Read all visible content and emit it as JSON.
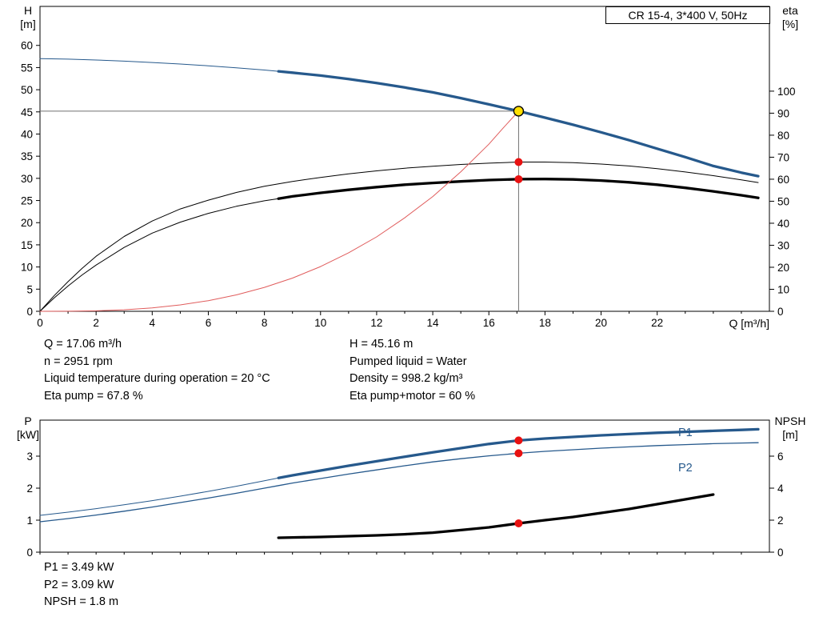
{
  "window": {
    "background": "#ffffff"
  },
  "colors": {
    "blue": "#26598c",
    "black": "#000000",
    "red_curve": "#e05c5c",
    "red_dot": "#e81111",
    "yellow": "#ffdf00",
    "guide": "#707070"
  },
  "annotations": {
    "mid_left": [
      "Q = 17.06 m³/h",
      "n = 2951 rpm",
      "Liquid temperature during operation = 20 °C",
      "Eta pump = 67.8 %"
    ],
    "mid_right": [
      "H = 45.16 m",
      "Pumped liquid = Water",
      "Density = 998.2 kg/m³",
      "Eta pump+motor = 60 %"
    ],
    "bottom": [
      "P1 = 3.49 kW",
      "P2 = 3.09 kW",
      "NPSH = 1.8 m"
    ]
  },
  "chart_data": [
    {
      "name": "head-eta-chart",
      "type": "line",
      "title": "CR 15-4, 3*400 V, 50Hz",
      "x_axis": {
        "label": "Q [m³/h]",
        "range": [
          0,
          26
        ],
        "tick_labels": [
          0,
          2,
          4,
          6,
          8,
          10,
          12,
          14,
          16,
          18,
          20,
          22
        ]
      },
      "y_left": {
        "symbol": "H",
        "unit": "[m]",
        "range": [
          0,
          68.8
        ],
        "ticks": [
          0,
          5,
          10,
          15,
          20,
          25,
          30,
          35,
          40,
          45,
          50,
          55,
          60
        ]
      },
      "y_right": {
        "symbol": "eta",
        "unit": "[%]",
        "range": [
          0,
          138.5
        ],
        "ticks": [
          0,
          10,
          20,
          30,
          40,
          50,
          60,
          70,
          80,
          90,
          100
        ]
      },
      "series": [
        {
          "name": "eta-pump",
          "axis": "right",
          "color": "black",
          "width": 1,
          "points": [
            [
              0,
              0
            ],
            [
              0.5,
              7
            ],
            [
              1,
              13.5
            ],
            [
              1.5,
              19.5
            ],
            [
              2,
              25
            ],
            [
              3,
              34
            ],
            [
              4,
              41
            ],
            [
              5,
              46.5
            ],
            [
              6,
              50.5
            ],
            [
              7,
              54
            ],
            [
              8,
              56.8
            ],
            [
              9,
              59
            ],
            [
              10,
              60.8
            ],
            [
              11,
              62.4
            ],
            [
              12,
              63.8
            ],
            [
              13,
              65
            ],
            [
              14,
              65.9
            ],
            [
              15,
              66.7
            ],
            [
              16,
              67.3
            ],
            [
              17.06,
              67.8
            ],
            [
              18,
              67.8
            ],
            [
              19,
              67.5
            ],
            [
              20,
              66.9
            ],
            [
              21,
              66
            ],
            [
              22,
              64.8
            ],
            [
              23,
              63.3
            ],
            [
              24,
              61.6
            ],
            [
              25,
              59.7
            ],
            [
              25.6,
              58.5
            ]
          ]
        },
        {
          "name": "eta-pump-motor",
          "axis": "right",
          "color": "black",
          "emphasis_from": 8.5,
          "points": [
            [
              0,
              0
            ],
            [
              0.5,
              6
            ],
            [
              1,
              11.5
            ],
            [
              1.5,
              16.5
            ],
            [
              2,
              21
            ],
            [
              3,
              29
            ],
            [
              4,
              35.5
            ],
            [
              5,
              40.5
            ],
            [
              6,
              44.5
            ],
            [
              7,
              47.7
            ],
            [
              8,
              50.2
            ],
            [
              8.5,
              51.2
            ],
            [
              9,
              52.2
            ],
            [
              10,
              53.8
            ],
            [
              11,
              55.2
            ],
            [
              12,
              56.4
            ],
            [
              13,
              57.5
            ],
            [
              14,
              58.3
            ],
            [
              15,
              59
            ],
            [
              16,
              59.6
            ],
            [
              17.06,
              60
            ],
            [
              18,
              60.1
            ],
            [
              19,
              59.9
            ],
            [
              20,
              59.4
            ],
            [
              21,
              58.6
            ],
            [
              22,
              57.5
            ],
            [
              23,
              56.1
            ],
            [
              24,
              54.5
            ],
            [
              25,
              52.7
            ],
            [
              25.6,
              51.5
            ]
          ]
        },
        {
          "name": "system-curve",
          "axis": "left",
          "color": "red_curve",
          "width": 1,
          "points": [
            [
              0,
              0
            ],
            [
              1,
              0.02
            ],
            [
              2,
              0.11
            ],
            [
              3,
              0.35
            ],
            [
              4,
              0.78
            ],
            [
              5,
              1.45
            ],
            [
              6,
              2.4
            ],
            [
              7,
              3.7
            ],
            [
              8,
              5.4
            ],
            [
              9,
              7.5
            ],
            [
              10,
              10.1
            ],
            [
              11,
              13.2
            ],
            [
              12,
              16.8
            ],
            [
              13,
              21.1
            ],
            [
              14,
              25.9
            ],
            [
              15,
              31.5
            ],
            [
              16,
              37.7
            ],
            [
              16.5,
              41.3
            ],
            [
              17.06,
              45.16
            ]
          ]
        },
        {
          "name": "pump-curve-H",
          "axis": "left",
          "color": "blue",
          "emphasis_from": 8.5,
          "points": [
            [
              0,
              57
            ],
            [
              1,
              56.9
            ],
            [
              2,
              56.7
            ],
            [
              3,
              56.45
            ],
            [
              4,
              56.15
            ],
            [
              5,
              55.8
            ],
            [
              6,
              55.4
            ],
            [
              7,
              54.95
            ],
            [
              8,
              54.45
            ],
            [
              8.5,
              54.15
            ],
            [
              9,
              53.85
            ],
            [
              10,
              53.2
            ],
            [
              11,
              52.4
            ],
            [
              12,
              51.5
            ],
            [
              13,
              50.5
            ],
            [
              14,
              49.4
            ],
            [
              15,
              48.1
            ],
            [
              16,
              46.7
            ],
            [
              17.06,
              45.16
            ],
            [
              18,
              43.7
            ],
            [
              19,
              42.1
            ],
            [
              20,
              40.4
            ],
            [
              21,
              38.6
            ],
            [
              22,
              36.7
            ],
            [
              23,
              34.8
            ],
            [
              24,
              32.8
            ],
            [
              25,
              31.3
            ],
            [
              25.6,
              30.5
            ]
          ]
        }
      ],
      "duty": {
        "q": 17.06,
        "main": {
          "axis": "left",
          "value": 45.16
        },
        "markers": [
          {
            "axis": "right",
            "value": 67.8
          },
          {
            "axis": "right",
            "value": 60.0
          }
        ]
      }
    },
    {
      "name": "power-npsh-chart",
      "type": "line",
      "title": "",
      "x_axis": {
        "label": "",
        "range": [
          0,
          26
        ],
        "tick_labels": []
      },
      "y_left": {
        "symbol": "P",
        "unit": "[kW]",
        "range": [
          0,
          4.125
        ],
        "ticks": [
          0,
          1,
          2,
          3
        ]
      },
      "y_right": {
        "symbol": "NPSH",
        "unit": "[m]",
        "range": [
          0,
          8.25
        ],
        "ticks": [
          0,
          2,
          4,
          6
        ]
      },
      "series": [
        {
          "name": "P1",
          "axis": "left",
          "color": "blue",
          "emphasis_from": 8.5,
          "points": [
            [
              0,
              1.15
            ],
            [
              1,
              1.25
            ],
            [
              2,
              1.36
            ],
            [
              3,
              1.48
            ],
            [
              4,
              1.61
            ],
            [
              5,
              1.75
            ],
            [
              6,
              1.9
            ],
            [
              7,
              2.06
            ],
            [
              8,
              2.23
            ],
            [
              8.5,
              2.32
            ],
            [
              9,
              2.4
            ],
            [
              10,
              2.55
            ],
            [
              11,
              2.7
            ],
            [
              12,
              2.84
            ],
            [
              13,
              2.98
            ],
            [
              14,
              3.12
            ],
            [
              15,
              3.25
            ],
            [
              16,
              3.38
            ],
            [
              17.06,
              3.49
            ],
            [
              18,
              3.55
            ],
            [
              19,
              3.6
            ],
            [
              20,
              3.65
            ],
            [
              21,
              3.69
            ],
            [
              22,
              3.73
            ],
            [
              23,
              3.76
            ],
            [
              24,
              3.79
            ],
            [
              25,
              3.82
            ],
            [
              25.6,
              3.84
            ]
          ]
        },
        {
          "name": "P2",
          "axis": "left",
          "color": "blue",
          "width": 1.3,
          "points": [
            [
              0,
              0.95
            ],
            [
              1,
              1.05
            ],
            [
              2,
              1.16
            ],
            [
              3,
              1.28
            ],
            [
              4,
              1.41
            ],
            [
              5,
              1.55
            ],
            [
              6,
              1.69
            ],
            [
              7,
              1.84
            ],
            [
              8,
              2.0
            ],
            [
              8.5,
              2.08
            ],
            [
              9,
              2.16
            ],
            [
              10,
              2.3
            ],
            [
              11,
              2.44
            ],
            [
              12,
              2.57
            ],
            [
              13,
              2.7
            ],
            [
              14,
              2.82
            ],
            [
              15,
              2.92
            ],
            [
              16,
              3.01
            ],
            [
              17.06,
              3.09
            ],
            [
              18,
              3.15
            ],
            [
              19,
              3.2
            ],
            [
              20,
              3.25
            ],
            [
              21,
              3.29
            ],
            [
              22,
              3.33
            ],
            [
              23,
              3.36
            ],
            [
              24,
              3.39
            ],
            [
              25,
              3.41
            ],
            [
              25.6,
              3.42
            ]
          ]
        },
        {
          "name": "NPSH",
          "axis": "right",
          "color": "black",
          "emphasis_from": 8.5,
          "points": [
            [
              8.5,
              0.9
            ],
            [
              9,
              0.92
            ],
            [
              10,
              0.95
            ],
            [
              11,
              1.0
            ],
            [
              12,
              1.05
            ],
            [
              13,
              1.12
            ],
            [
              14,
              1.22
            ],
            [
              15,
              1.38
            ],
            [
              16,
              1.55
            ],
            [
              17.06,
              1.8
            ],
            [
              18,
              2.0
            ],
            [
              19,
              2.2
            ],
            [
              20,
              2.45
            ],
            [
              21,
              2.7
            ],
            [
              22,
              3.0
            ],
            [
              23,
              3.3
            ],
            [
              24,
              3.6
            ]
          ]
        }
      ],
      "duty": {
        "q": 17.06,
        "markers": [
          {
            "axis": "left",
            "value": 3.49
          },
          {
            "axis": "left",
            "value": 3.09
          },
          {
            "axis": "right",
            "value": 1.8
          }
        ]
      }
    }
  ]
}
